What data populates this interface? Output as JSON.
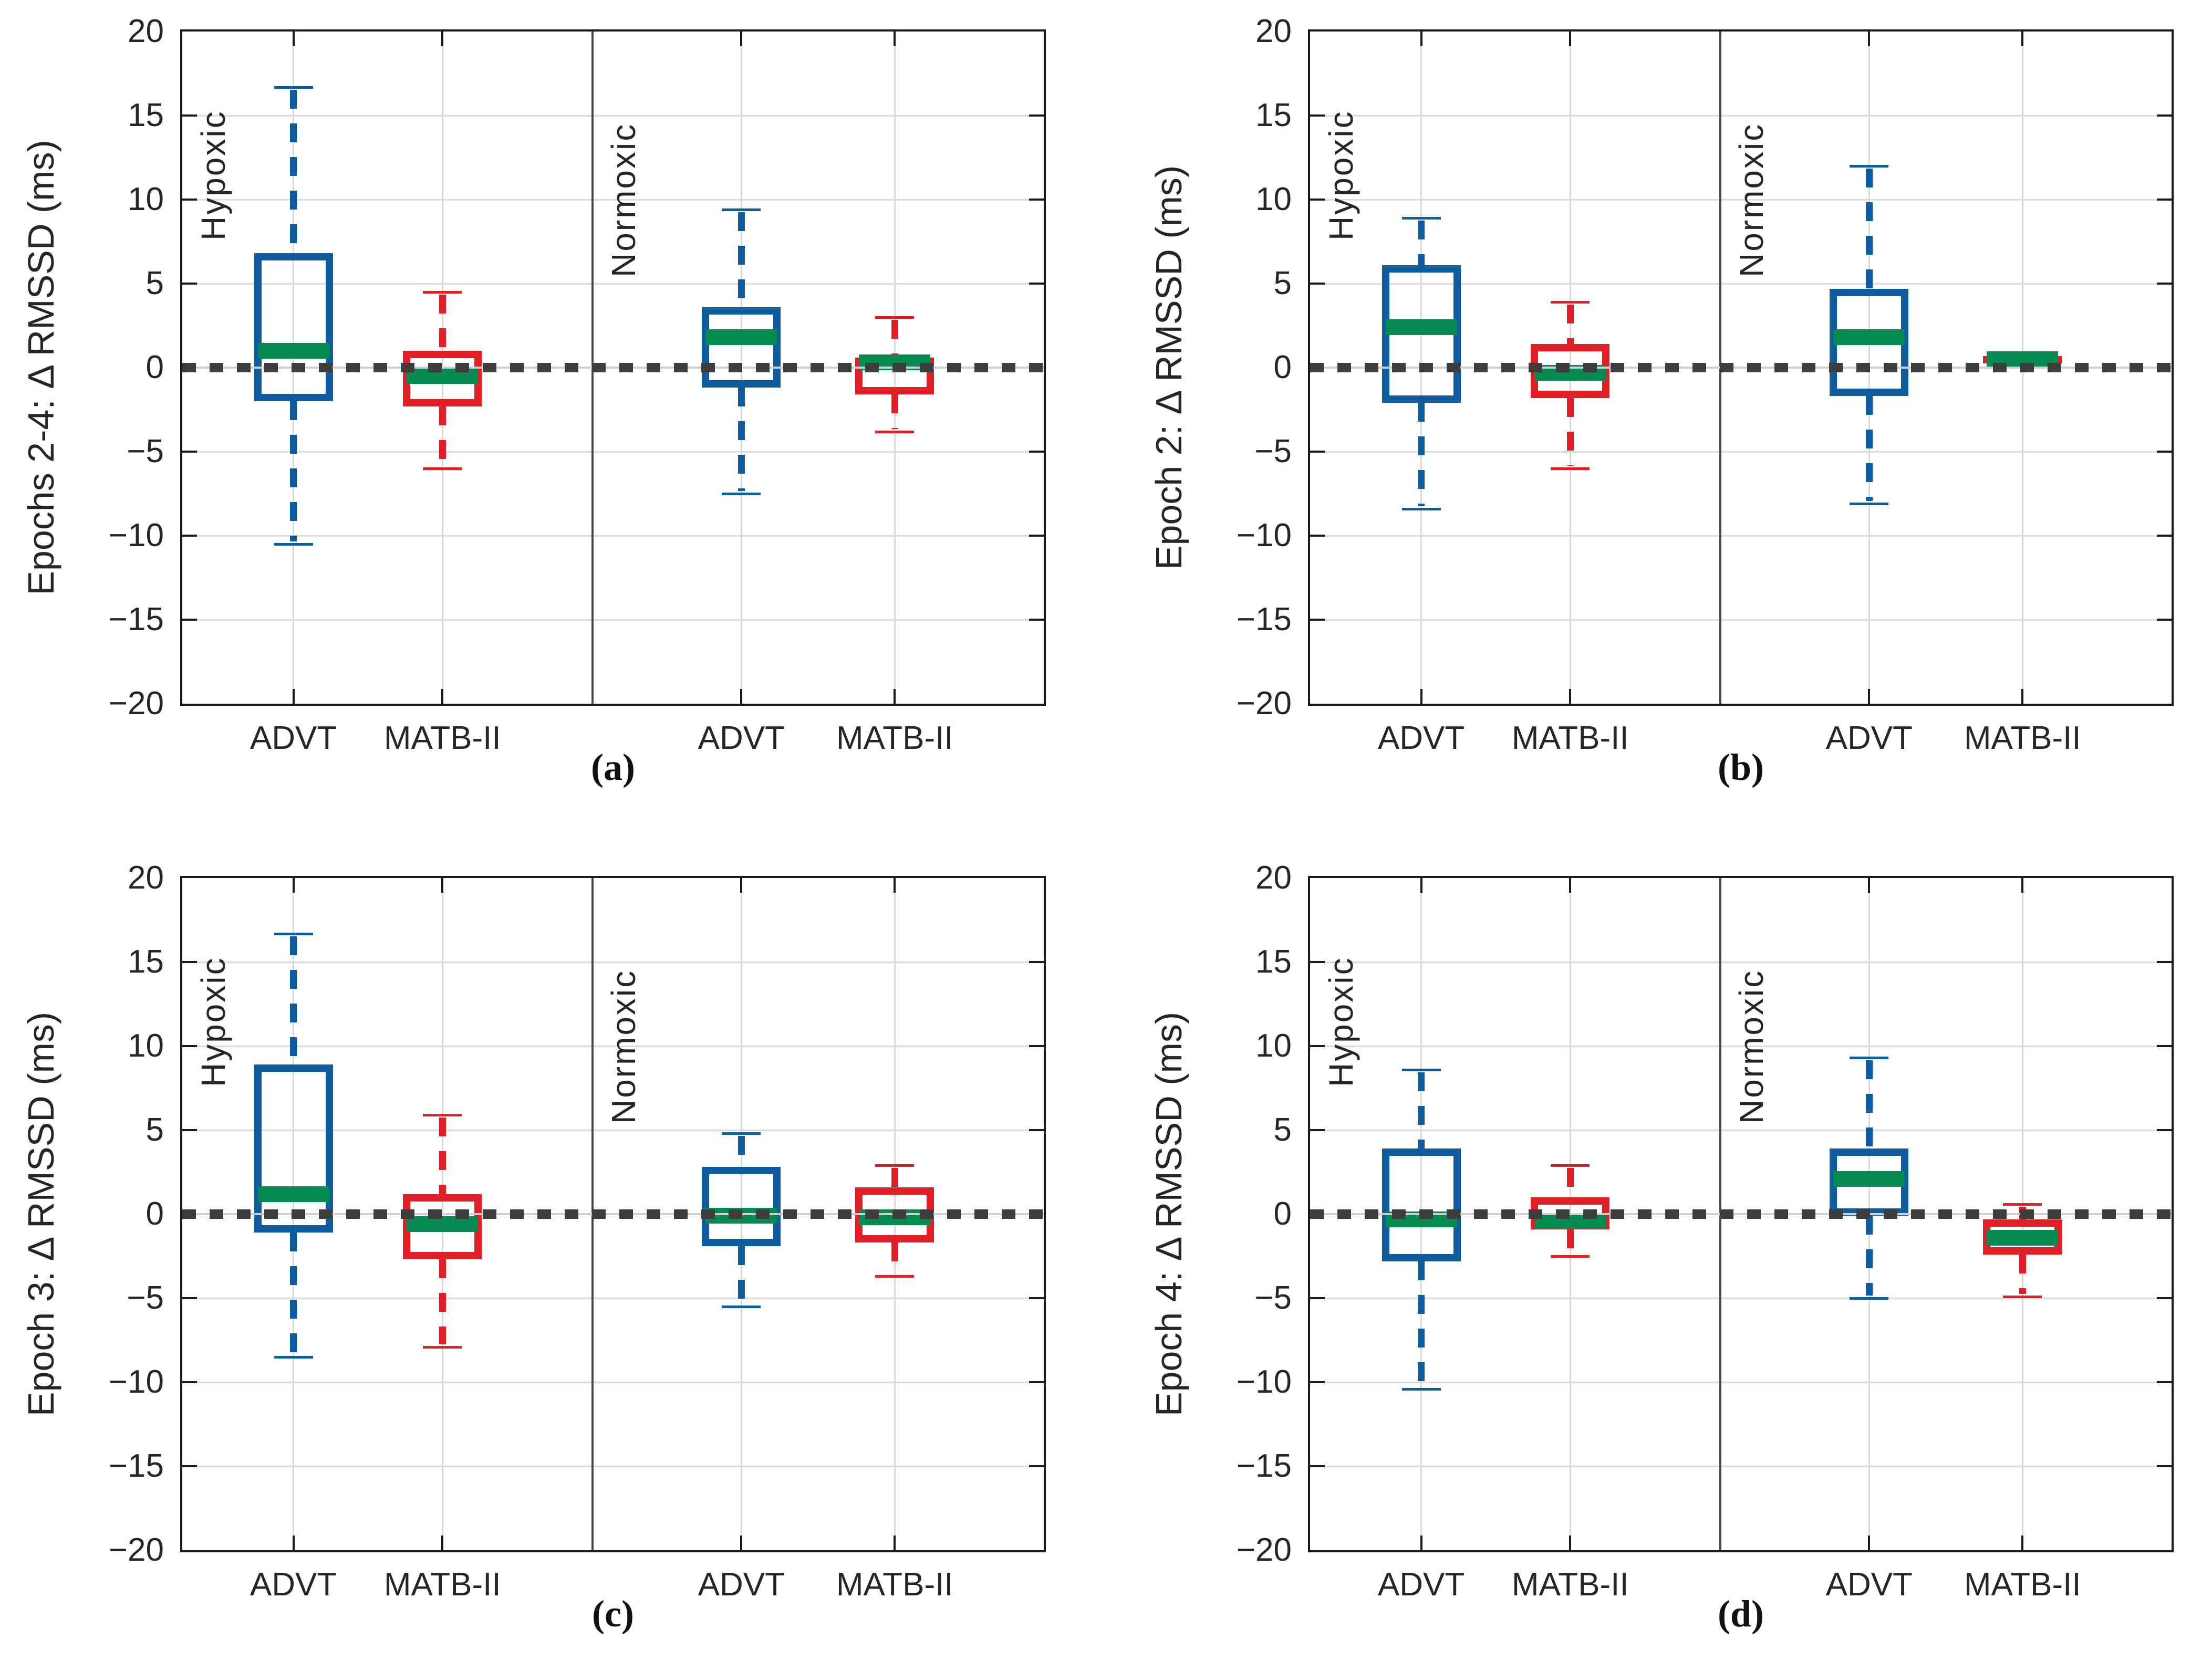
{
  "figure": {
    "background": "#ffffff"
  },
  "style": {
    "advt_color": "#0f5c9e",
    "matb_color": "#e01f26",
    "median_color": "#058a51",
    "zero_dash_color": "#3d3d3d",
    "zero_base_color": "#cfcfcf",
    "grid_color": "#d9d9d9",
    "spine_color": "#1a1a1a",
    "separator_color": "#4a4a4a",
    "text_color": "#262626"
  },
  "chart_data": [
    {
      "type": "boxplot",
      "caption": "(a)",
      "ylabel": "Epochs 2-4: Δ RMSSD (ms)",
      "xlabel": "",
      "ylim": [
        -20,
        20
      ],
      "yticks": [
        -20,
        -15,
        -10,
        -5,
        0,
        5,
        10,
        15,
        20
      ],
      "grid": true,
      "zero_reference_line": 0,
      "groups": [
        {
          "label": "Hypoxic",
          "categories": [
            "ADVT",
            "MATB-II"
          ]
        },
        {
          "label": "Normoxic",
          "categories": [
            "ADVT",
            "MATB-II"
          ]
        }
      ],
      "boxes": [
        {
          "group": "Hypoxic",
          "category": "ADVT",
          "whisker_low": -10.5,
          "q1": -2.0,
          "median": 1.0,
          "q3": 6.8,
          "whisker_high": 16.7
        },
        {
          "group": "Hypoxic",
          "category": "MATB-II",
          "whisker_low": -6.0,
          "q1": -2.3,
          "median": -0.5,
          "q3": 1.0,
          "whisker_high": 4.5
        },
        {
          "group": "Normoxic",
          "category": "ADVT",
          "whisker_low": -7.5,
          "q1": -1.2,
          "median": 1.8,
          "q3": 3.6,
          "whisker_high": 9.4
        },
        {
          "group": "Normoxic",
          "category": "MATB-II",
          "whisker_low": -3.8,
          "q1": -1.6,
          "median": 0.3,
          "q3": 0.6,
          "whisker_high": 3.0
        }
      ]
    },
    {
      "type": "boxplot",
      "caption": "(b)",
      "ylabel": "Epoch 2: Δ RMSSD (ms)",
      "xlabel": "",
      "ylim": [
        -20,
        20
      ],
      "yticks": [
        -20,
        -15,
        -10,
        -5,
        0,
        5,
        10,
        15,
        20
      ],
      "grid": true,
      "zero_reference_line": 0,
      "groups": [
        {
          "label": "Hypoxic",
          "categories": [
            "ADVT",
            "MATB-II"
          ]
        },
        {
          "label": "Normoxic",
          "categories": [
            "ADVT",
            "MATB-II"
          ]
        }
      ],
      "boxes": [
        {
          "group": "Hypoxic",
          "category": "ADVT",
          "whisker_low": -8.4,
          "q1": -2.1,
          "median": 2.4,
          "q3": 6.1,
          "whisker_high": 8.9
        },
        {
          "group": "Hypoxic",
          "category": "MATB-II",
          "whisker_low": -6.0,
          "q1": -1.8,
          "median": -0.3,
          "q3": 1.4,
          "whisker_high": 3.9
        },
        {
          "group": "Normoxic",
          "category": "ADVT",
          "whisker_low": -8.1,
          "q1": -1.7,
          "median": 1.8,
          "q3": 4.7,
          "whisker_high": 12.0
        },
        {
          "group": "Normoxic",
          "category": "MATB-II",
          "whisker_low": 0.25,
          "q1": 0.25,
          "median": 0.5,
          "q3": 0.7,
          "whisker_high": 0.7
        }
      ]
    },
    {
      "type": "boxplot",
      "caption": "(c)",
      "ylabel": "Epoch 3: Δ RMSSD (ms)",
      "xlabel": "",
      "ylim": [
        -20,
        20
      ],
      "yticks": [
        -20,
        -15,
        -10,
        -5,
        0,
        5,
        10,
        15,
        20
      ],
      "grid": true,
      "zero_reference_line": 0,
      "groups": [
        {
          "label": "Hypoxic",
          "categories": [
            "ADVT",
            "MATB-II"
          ]
        },
        {
          "label": "Normoxic",
          "categories": [
            "ADVT",
            "MATB-II"
          ]
        }
      ],
      "boxes": [
        {
          "group": "Hypoxic",
          "category": "ADVT",
          "whisker_low": -8.5,
          "q1": -1.1,
          "median": 1.2,
          "q3": 8.9,
          "whisker_high": 16.7
        },
        {
          "group": "Hypoxic",
          "category": "MATB-II",
          "whisker_low": -7.9,
          "q1": -2.7,
          "median": -0.6,
          "q3": 1.2,
          "whisker_high": 5.9
        },
        {
          "group": "Normoxic",
          "category": "ADVT",
          "whisker_low": -5.5,
          "q1": -1.9,
          "median": -0.1,
          "q3": 2.8,
          "whisker_high": 4.8
        },
        {
          "group": "Normoxic",
          "category": "MATB-II",
          "whisker_low": -3.7,
          "q1": -1.7,
          "median": -0.2,
          "q3": 1.6,
          "whisker_high": 2.9
        }
      ]
    },
    {
      "type": "boxplot",
      "caption": "(d)",
      "ylabel": "Epoch 4: Δ RMSSD (ms)",
      "xlabel": "",
      "ylim": [
        -20,
        20
      ],
      "yticks": [
        -20,
        -15,
        -10,
        -5,
        0,
        5,
        10,
        15,
        20
      ],
      "grid": true,
      "zero_reference_line": 0,
      "groups": [
        {
          "label": "Hypoxic",
          "categories": [
            "ADVT",
            "MATB-II"
          ]
        },
        {
          "label": "Normoxic",
          "categories": [
            "ADVT",
            "MATB-II"
          ]
        }
      ],
      "boxes": [
        {
          "group": "Hypoxic",
          "category": "ADVT",
          "whisker_low": -10.4,
          "q1": -2.8,
          "median": -0.3,
          "q3": 3.9,
          "whisker_high": 8.6
        },
        {
          "group": "Hypoxic",
          "category": "MATB-II",
          "whisker_low": -2.5,
          "q1": -0.9,
          "median": -0.4,
          "q3": 1.0,
          "whisker_high": 2.9
        },
        {
          "group": "Normoxic",
          "category": "ADVT",
          "whisker_low": -5.0,
          "q1": -0.1,
          "median": 2.1,
          "q3": 3.9,
          "whisker_high": 9.3
        },
        {
          "group": "Normoxic",
          "category": "MATB-II",
          "whisker_low": -4.9,
          "q1": -2.4,
          "median": -1.4,
          "q3": -0.3,
          "whisker_high": 0.6
        }
      ]
    }
  ]
}
